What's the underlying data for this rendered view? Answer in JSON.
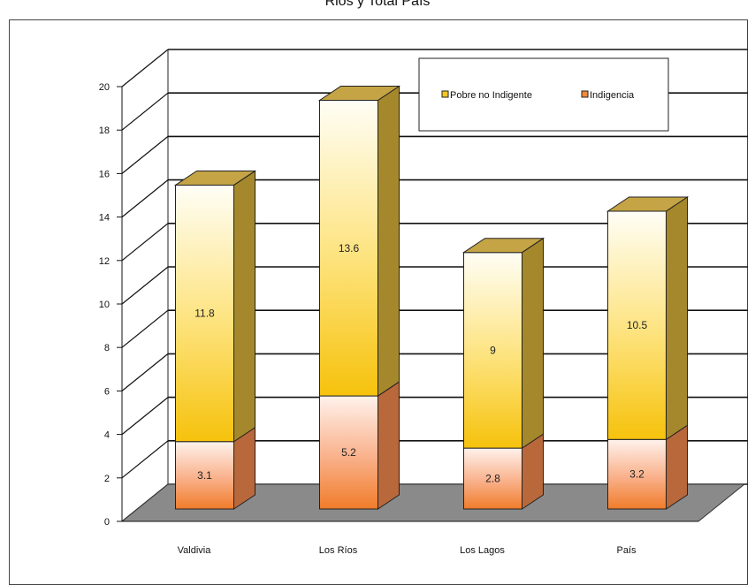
{
  "chart_data": {
    "type": "bar",
    "stacked": true,
    "three_d": true,
    "title": "Rios y Total País",
    "categories": [
      "Valdivia",
      "Los Ríos",
      "Los Lagos",
      "País"
    ],
    "series": [
      {
        "name": "Indigencia",
        "values": [
          3.1,
          5.2,
          2.8,
          3.2
        ],
        "color": "#f28a3c"
      },
      {
        "name": "Pobre no Indigente",
        "values": [
          11.8,
          13.6,
          9,
          10.5
        ],
        "color": "#f6c623"
      }
    ],
    "y_ticks": [
      "0",
      "2",
      "4",
      "6",
      "8",
      "10",
      "12",
      "14",
      "16",
      "18",
      "20"
    ],
    "ylim": [
      0,
      20
    ],
    "grid": true,
    "legend_position": "top-right",
    "legend_order": [
      "Pobre no Indigente",
      "Indigencia"
    ],
    "floor_color": "#8a8a8a"
  }
}
